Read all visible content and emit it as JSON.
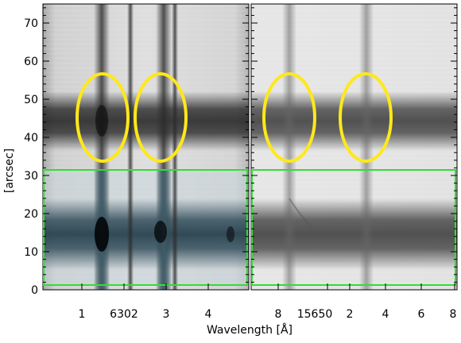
{
  "figure": {
    "ylabel": "[arcsec]",
    "xlabel": "Wavelength [Å]",
    "left_panel": {
      "x_ticks": [
        "1",
        "6302",
        "3",
        "4"
      ],
      "y_ticks": [
        "0",
        "10",
        "20",
        "30",
        "40",
        "50",
        "60",
        "70"
      ]
    },
    "right_panel": {
      "x_ticks": [
        "8",
        "15650",
        "2",
        "4",
        "6",
        "8"
      ]
    },
    "colors": {
      "highlight_ellipse": "#ffe81a",
      "highlight_box": "#33dd33",
      "colorized_region": "#5a7f8c"
    }
  },
  "chart_data": {
    "type": "heatmap",
    "ylabel": "[arcsec]",
    "xlabel": "Wavelength [Å]",
    "ylim": [
      0,
      75
    ],
    "panels": [
      {
        "name": "left",
        "x_tick_labels": [
          "1",
          "6302",
          "3",
          "4"
        ],
        "y_tick_labels": [
          0,
          10,
          20,
          30,
          40,
          50,
          60,
          70
        ],
        "highlight_ellipses": 2,
        "highlight_box_y_range": [
          2,
          32
        ]
      },
      {
        "name": "right",
        "x_tick_labels": [
          "8",
          "15650",
          "2",
          "4",
          "6",
          "8"
        ],
        "highlight_ellipses": 2,
        "highlight_box_y_range": [
          2,
          32
        ]
      }
    ]
  }
}
